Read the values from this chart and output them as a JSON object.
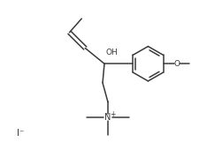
{
  "background_color": "#ffffff",
  "line_color": "#3a3a3a",
  "line_width": 1.1,
  "fig_width": 2.34,
  "fig_height": 1.7,
  "dpi": 100,
  "iodide_text": "I⁻",
  "iodide_fontsize": 7.5,
  "oh_text": "OH",
  "oh_fontsize": 6.5,
  "o_text": "O",
  "o_fontsize": 6.5,
  "n_fontsize": 7.0,
  "label_color": "#3a3a3a"
}
